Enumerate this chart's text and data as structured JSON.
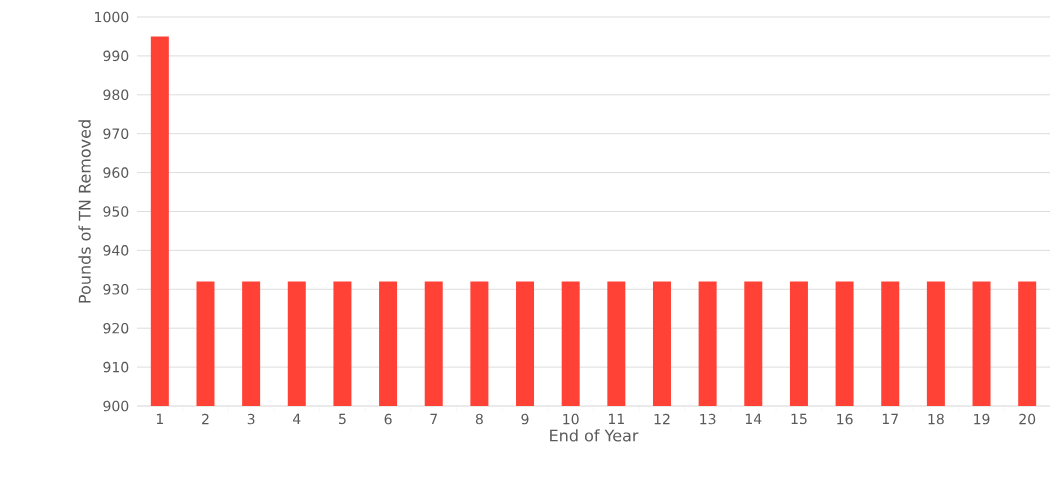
{
  "chart_data": {
    "type": "bar",
    "xlabel": "End of Year",
    "ylabel": "Pounds of TN Removed",
    "categories": [
      "1",
      "2",
      "3",
      "4",
      "5",
      "6",
      "7",
      "8",
      "9",
      "10",
      "11",
      "12",
      "13",
      "14",
      "15",
      "16",
      "17",
      "18",
      "19",
      "20"
    ],
    "values": [
      995,
      932,
      932,
      932,
      932,
      932,
      932,
      932,
      932,
      932,
      932,
      932,
      932,
      932,
      932,
      932,
      932,
      932,
      932,
      932
    ],
    "color": "#ff4136",
    "ylim": [
      900,
      1000
    ],
    "yticks": [
      900,
      910,
      920,
      930,
      940,
      950,
      960,
      970,
      980,
      990,
      1000
    ],
    "grid": "y"
  }
}
